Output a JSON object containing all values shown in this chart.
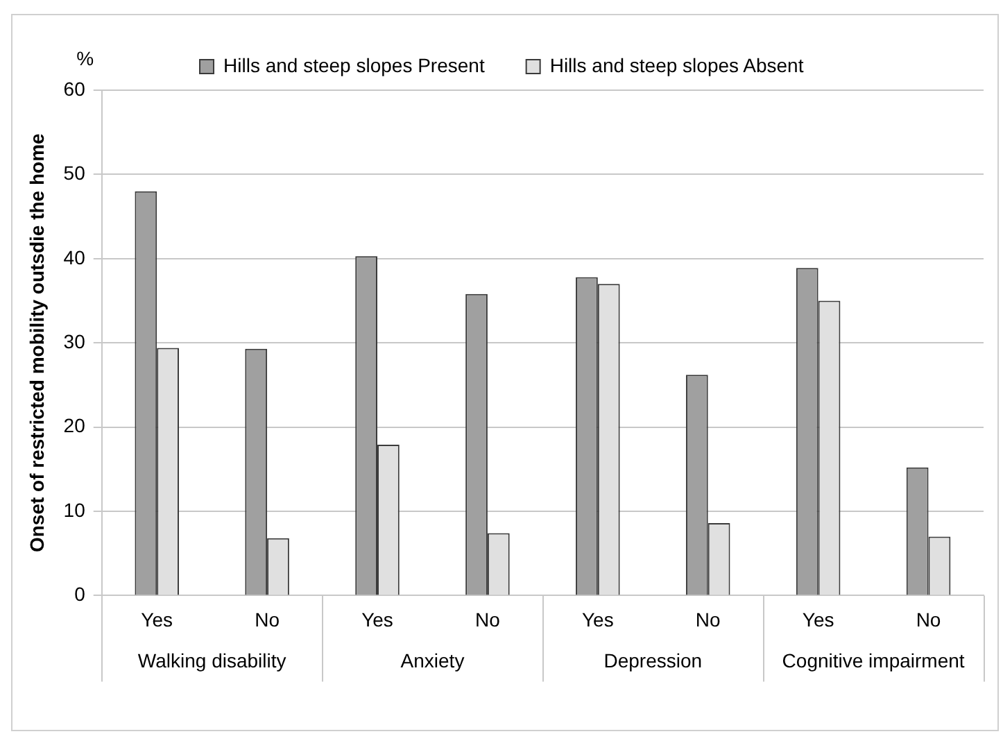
{
  "chart_data": {
    "type": "bar",
    "ylabel": "Onset of restricted mobility outsdie the home",
    "categories": [
      "Yes",
      "No",
      "Yes",
      "No",
      "Yes",
      "No",
      "Yes",
      "No"
    ],
    "series": [
      {
        "name": "Hills and steep slopes Present",
        "color": "#a0a0a0",
        "values": [
          48,
          29.3,
          40.3,
          35.8,
          37.8,
          26.2,
          38.9,
          15.2
        ]
      },
      {
        "name": "Hills and steep slopes Absent",
        "color": "#e0e0e0",
        "values": [
          29.4,
          6.8,
          17.9,
          7.4,
          37.0,
          8.6,
          35.0,
          7.0
        ]
      }
    ],
    "annotations": [
      "%",
      "Walking disability",
      "Anxiety",
      "Depression",
      "Cognitive impairment"
    ],
    "ylim": [
      0,
      60
    ],
    "yticks": [
      0,
      10,
      20,
      30,
      40,
      50,
      60
    ],
    "grid": "y",
    "legend": "top"
  }
}
